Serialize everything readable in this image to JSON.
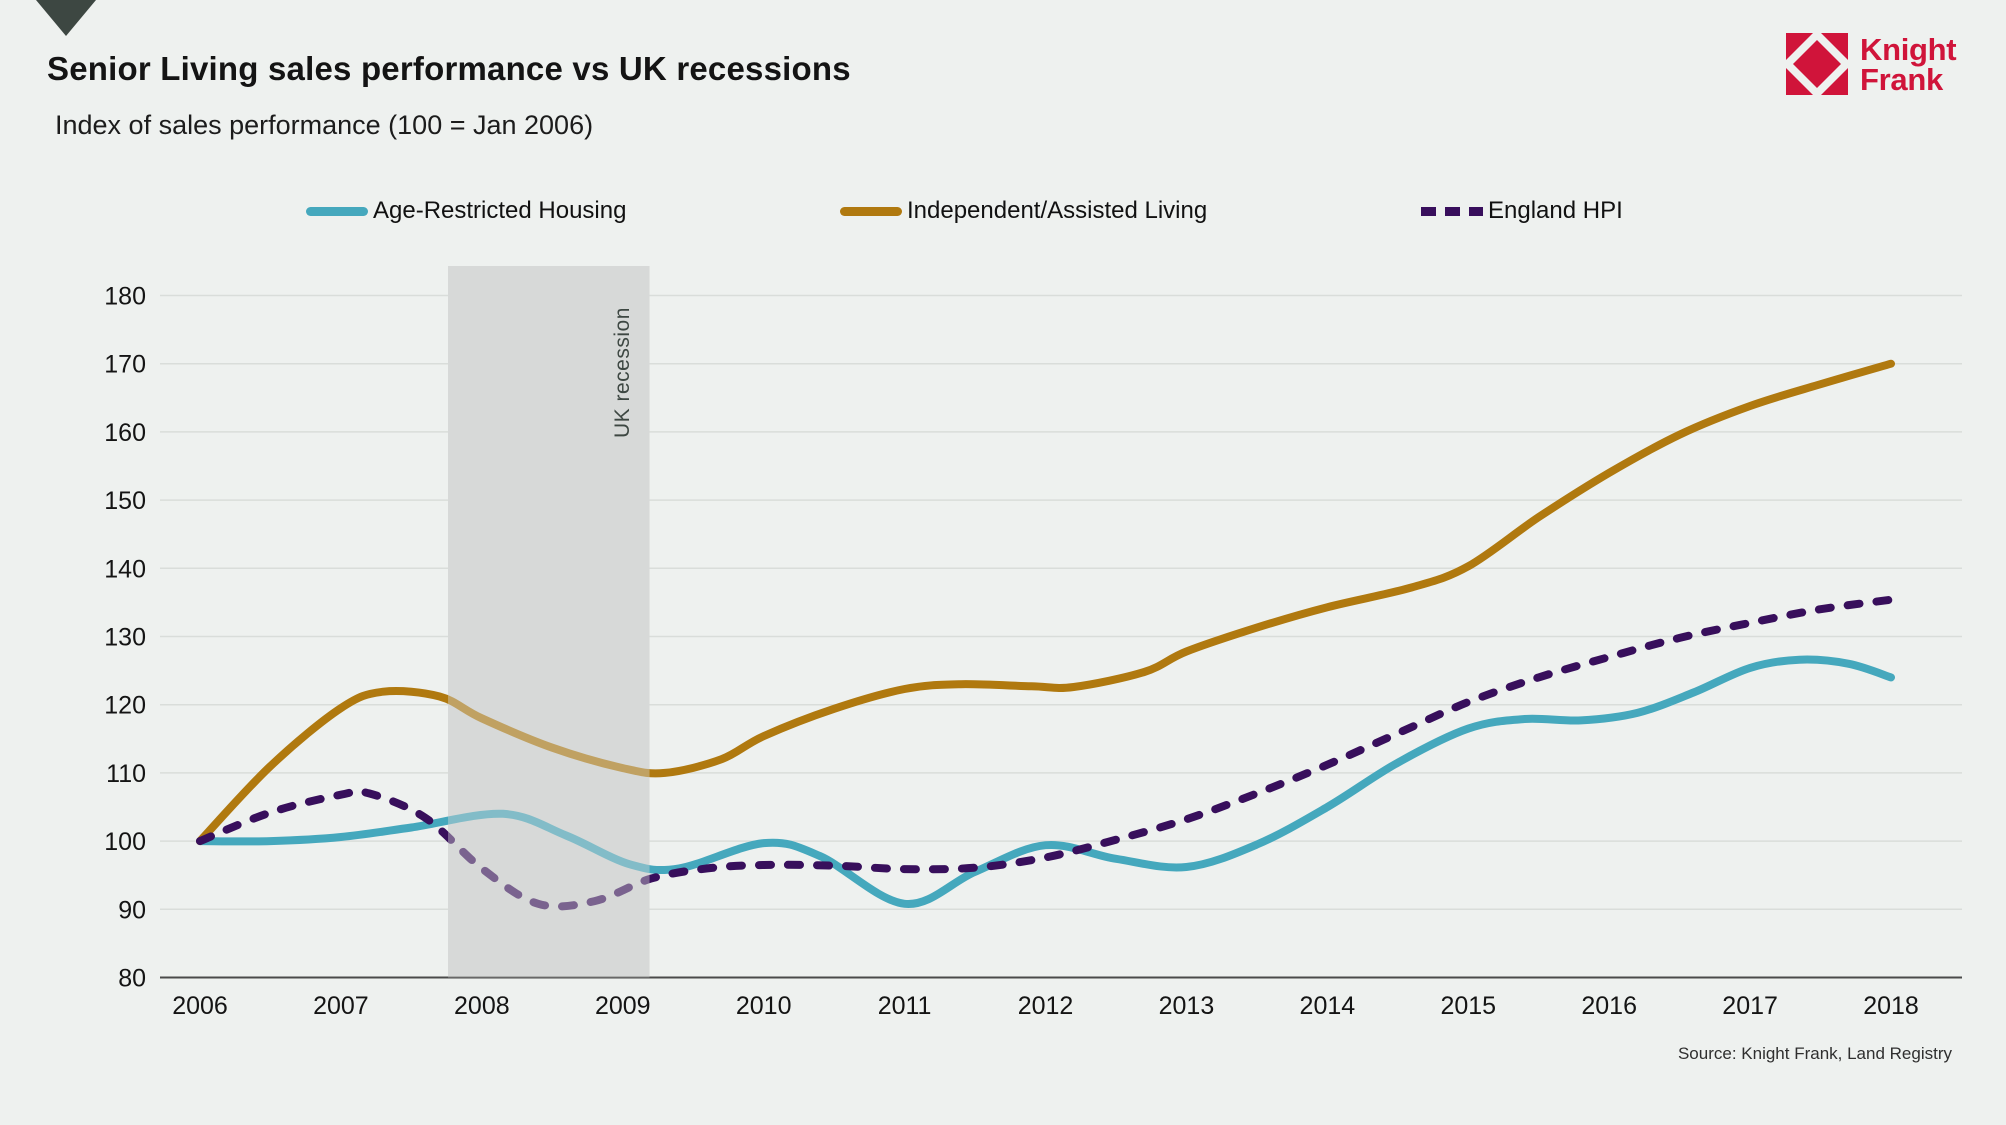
{
  "header": {
    "title": "Senior Living sales performance vs UK recessions",
    "subtitle": "Index of sales performance (100 = Jan 2006)"
  },
  "logo": {
    "line1": "Knight",
    "line2": "Frank",
    "color": "#d0143a"
  },
  "source": "Source: Knight Frank, Land Registry",
  "chart_data": {
    "type": "line",
    "title": "Senior Living sales performance vs UK recessions",
    "subtitle": "Index of sales performance (100 = Jan 2006)",
    "grid": "horizontal",
    "legend_position": "top",
    "x_axis": {
      "ticks": [
        2006,
        2007,
        2008,
        2009,
        2010,
        2011,
        2012,
        2013,
        2014,
        2015,
        2016,
        2017,
        2018
      ],
      "range": [
        2005.7,
        2018.5
      ]
    },
    "y_axis": {
      "ticks": [
        80,
        90,
        100,
        110,
        120,
        130,
        140,
        150,
        160,
        170,
        180
      ],
      "range": [
        80,
        185
      ]
    },
    "recession_band": {
      "label": "UK recession",
      "x_start": 2007.76,
      "x_end": 2009.19,
      "color": "#d8dad9"
    },
    "series": [
      {
        "name": "Age-Restricted Housing",
        "color": "#45a8bd",
        "style": "solid",
        "points": [
          [
            2006,
            100
          ],
          [
            2006.5,
            100
          ],
          [
            2007,
            100.6
          ],
          [
            2007.5,
            102
          ],
          [
            2008.15,
            104
          ],
          [
            2008.6,
            100.8
          ],
          [
            2009.05,
            96.6
          ],
          [
            2009.4,
            96
          ],
          [
            2010,
            99.7
          ],
          [
            2010.4,
            97.8
          ],
          [
            2011,
            90.8
          ],
          [
            2011.5,
            95.5
          ],
          [
            2012,
            99.4
          ],
          [
            2012.5,
            97.4
          ],
          [
            2013,
            96.2
          ],
          [
            2013.5,
            99.5
          ],
          [
            2014,
            105
          ],
          [
            2014.5,
            111.5
          ],
          [
            2015,
            116.5
          ],
          [
            2015.4,
            117.9
          ],
          [
            2015.8,
            117.7
          ],
          [
            2016.2,
            118.8
          ],
          [
            2016.6,
            121.8
          ],
          [
            2017,
            125.4
          ],
          [
            2017.35,
            126.6
          ],
          [
            2017.7,
            126
          ],
          [
            2018,
            124
          ]
        ]
      },
      {
        "name": "Independent/Assisted Living",
        "color": "#b0790f",
        "style": "solid",
        "points": [
          [
            2006,
            100
          ],
          [
            2006.5,
            111
          ],
          [
            2007,
            119.5
          ],
          [
            2007.3,
            121.9
          ],
          [
            2007.7,
            121.2
          ],
          [
            2008,
            118
          ],
          [
            2008.5,
            113.7
          ],
          [
            2009,
            110.7
          ],
          [
            2009.3,
            110
          ],
          [
            2009.7,
            112
          ],
          [
            2010,
            115.4
          ],
          [
            2010.5,
            119.4
          ],
          [
            2011,
            122.3
          ],
          [
            2011.4,
            123
          ],
          [
            2011.9,
            122.7
          ],
          [
            2012.2,
            122.6
          ],
          [
            2012.7,
            124.8
          ],
          [
            2013,
            127.8
          ],
          [
            2013.5,
            131.3
          ],
          [
            2014,
            134.3
          ],
          [
            2014.6,
            137.2
          ],
          [
            2015,
            140.3
          ],
          [
            2015.5,
            147.5
          ],
          [
            2016,
            154
          ],
          [
            2016.5,
            159.6
          ],
          [
            2017,
            163.8
          ],
          [
            2017.5,
            167
          ],
          [
            2018,
            170
          ]
        ]
      },
      {
        "name": "England HPI",
        "color": "#380f5c",
        "style": "dashed",
        "points": [
          [
            2006,
            100
          ],
          [
            2006.5,
            104.2
          ],
          [
            2007,
            106.8
          ],
          [
            2007.2,
            107
          ],
          [
            2007.6,
            103.4
          ],
          [
            2008,
            96
          ],
          [
            2008.4,
            90.8
          ],
          [
            2008.8,
            91.2
          ],
          [
            2009.2,
            94.5
          ],
          [
            2009.6,
            96
          ],
          [
            2010,
            96.5
          ],
          [
            2010.5,
            96.4
          ],
          [
            2011,
            95.9
          ],
          [
            2011.5,
            96.1
          ],
          [
            2012,
            97.6
          ],
          [
            2012.5,
            100.2
          ],
          [
            2013,
            103.2
          ],
          [
            2013.5,
            107
          ],
          [
            2014,
            111.2
          ],
          [
            2014.5,
            115.8
          ],
          [
            2015,
            120.4
          ],
          [
            2015.5,
            124
          ],
          [
            2016,
            127
          ],
          [
            2016.5,
            129.8
          ],
          [
            2017,
            132
          ],
          [
            2017.5,
            134
          ],
          [
            2018,
            135.4
          ]
        ]
      }
    ]
  }
}
